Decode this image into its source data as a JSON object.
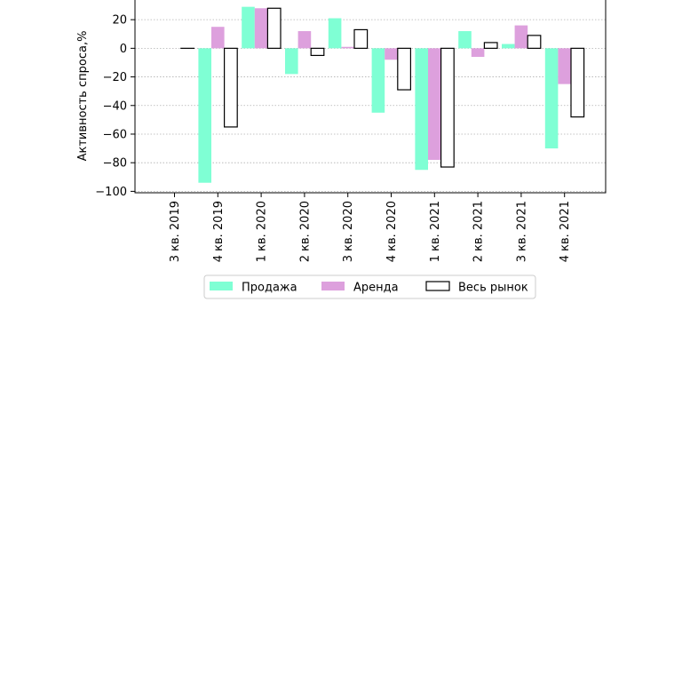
{
  "chart_data": {
    "type": "bar",
    "title": "",
    "xlabel": "",
    "ylabel": "Активность спроса,%",
    "categories": [
      "3 кв. 2019",
      "4 кв. 2019",
      "1 кв. 2020",
      "2 кв. 2020",
      "3 кв. 2020",
      "4 кв. 2020",
      "1 кв. 2021",
      "2 кв. 2021",
      "3 кв. 2021",
      "4 кв. 2021"
    ],
    "series": [
      {
        "name": "Продажа",
        "color": "#7fffd4",
        "style": "filled",
        "values": [
          0,
          -94,
          29,
          -18,
          21,
          -45,
          -85,
          12,
          3,
          -70
        ]
      },
      {
        "name": "Аренда",
        "color": "#dda0dd",
        "style": "filled",
        "values": [
          0,
          15,
          28,
          12,
          1,
          -8,
          -78,
          -6,
          16,
          -25
        ]
      },
      {
        "name": "Весь рынок",
        "color": "#000000",
        "style": "outline",
        "values": [
          0,
          -55,
          28,
          -5,
          13,
          -29,
          -83,
          4,
          9,
          -48
        ]
      }
    ],
    "ylim": [
      -101,
      35
    ],
    "yticks": [
      20,
      0,
      -20,
      -40,
      -60,
      -80,
      -100
    ],
    "ytick_labels": [
      "20",
      "0",
      "−20",
      "−40",
      "−60",
      "−80",
      "−100"
    ],
    "grid": "horizontal dotted",
    "legend_position": "bottom-center"
  }
}
